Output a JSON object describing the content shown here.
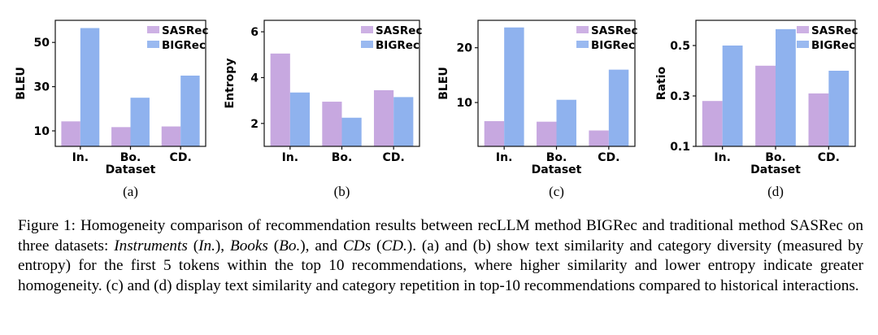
{
  "colors": {
    "sasrec": "#c7a8e0",
    "bigrec": "#8fb2ee",
    "sasrec_legend": "#cdb1e4",
    "bigrec_legend": "#9ab9f0"
  },
  "chart_data": [
    {
      "type": "bar",
      "panel_label": "(a)",
      "xlabel": "Dataset",
      "ylabel": "BLEU",
      "categories": [
        "In.",
        "Bo.",
        "CD."
      ],
      "ylim": [
        3,
        60
      ],
      "yticks": [
        10,
        30,
        50
      ],
      "ytick_labels": [
        "10",
        "30",
        "50"
      ],
      "legend_position": "top-right",
      "series": [
        {
          "name": "SASRec",
          "values": [
            14.3,
            11.7,
            12.0
          ]
        },
        {
          "name": "BIGRec",
          "values": [
            56.5,
            25.0,
            35.0
          ]
        }
      ]
    },
    {
      "type": "bar",
      "panel_label": "(b)",
      "xlabel": "",
      "ylabel": "Entropy",
      "categories": [
        "In.",
        "Bo.",
        "CD."
      ],
      "ylim": [
        1.0,
        6.5
      ],
      "yticks": [
        2,
        4,
        6
      ],
      "ytick_labels": [
        "2",
        "4",
        "6"
      ],
      "legend_position": "top-right",
      "series": [
        {
          "name": "SASRec",
          "values": [
            5.05,
            2.95,
            3.45
          ]
        },
        {
          "name": "BIGRec",
          "values": [
            3.35,
            2.25,
            3.15
          ]
        }
      ]
    },
    {
      "type": "bar",
      "panel_label": "(c)",
      "xlabel": "Dataset",
      "ylabel": "BLEU",
      "categories": [
        "In.",
        "Bo.",
        "CD."
      ],
      "ylim": [
        2,
        25
      ],
      "yticks": [
        10,
        20
      ],
      "ytick_labels": [
        "10",
        "20"
      ],
      "legend_position": "top-right",
      "series": [
        {
          "name": "SASRec",
          "values": [
            6.6,
            6.5,
            4.9
          ]
        },
        {
          "name": "BIGRec",
          "values": [
            23.7,
            10.5,
            16.0
          ]
        }
      ]
    },
    {
      "type": "bar",
      "panel_label": "(d)",
      "xlabel": "Dataset",
      "ylabel": "Ratio",
      "categories": [
        "In.",
        "Bo.",
        "CD."
      ],
      "ylim": [
        0.1,
        0.6
      ],
      "yticks": [
        0.1,
        0.3,
        0.5
      ],
      "ytick_labels": [
        "0.1",
        "0.3",
        "0.5"
      ],
      "legend_position": "top-right",
      "series": [
        {
          "name": "SASRec",
          "values": [
            0.28,
            0.42,
            0.31
          ]
        },
        {
          "name": "BIGRec",
          "values": [
            0.5,
            0.565,
            0.4
          ]
        }
      ]
    }
  ],
  "caption": {
    "label": "Figure 1:",
    "text1": "Homogeneity comparison of recommendation results between recLLM method BIGRec and traditional method SASRec on three datasets:",
    "ds1_name": "Instruments",
    "ds1_abbr": "In.",
    "ds2_name": "Books",
    "ds2_abbr": "Bo.",
    "ds3_name": "CDs",
    "ds3_abbr": "CD.",
    "text2": "(a) and (b) show text similarity and category diversity (measured by entropy) for the first 5 tokens within the top 10 recommendations, where higher similarity and lower entropy indicate greater homogeneity. (c) and (d) display text similarity and category repetition in top-10 recommendations compared to historical interactions."
  }
}
